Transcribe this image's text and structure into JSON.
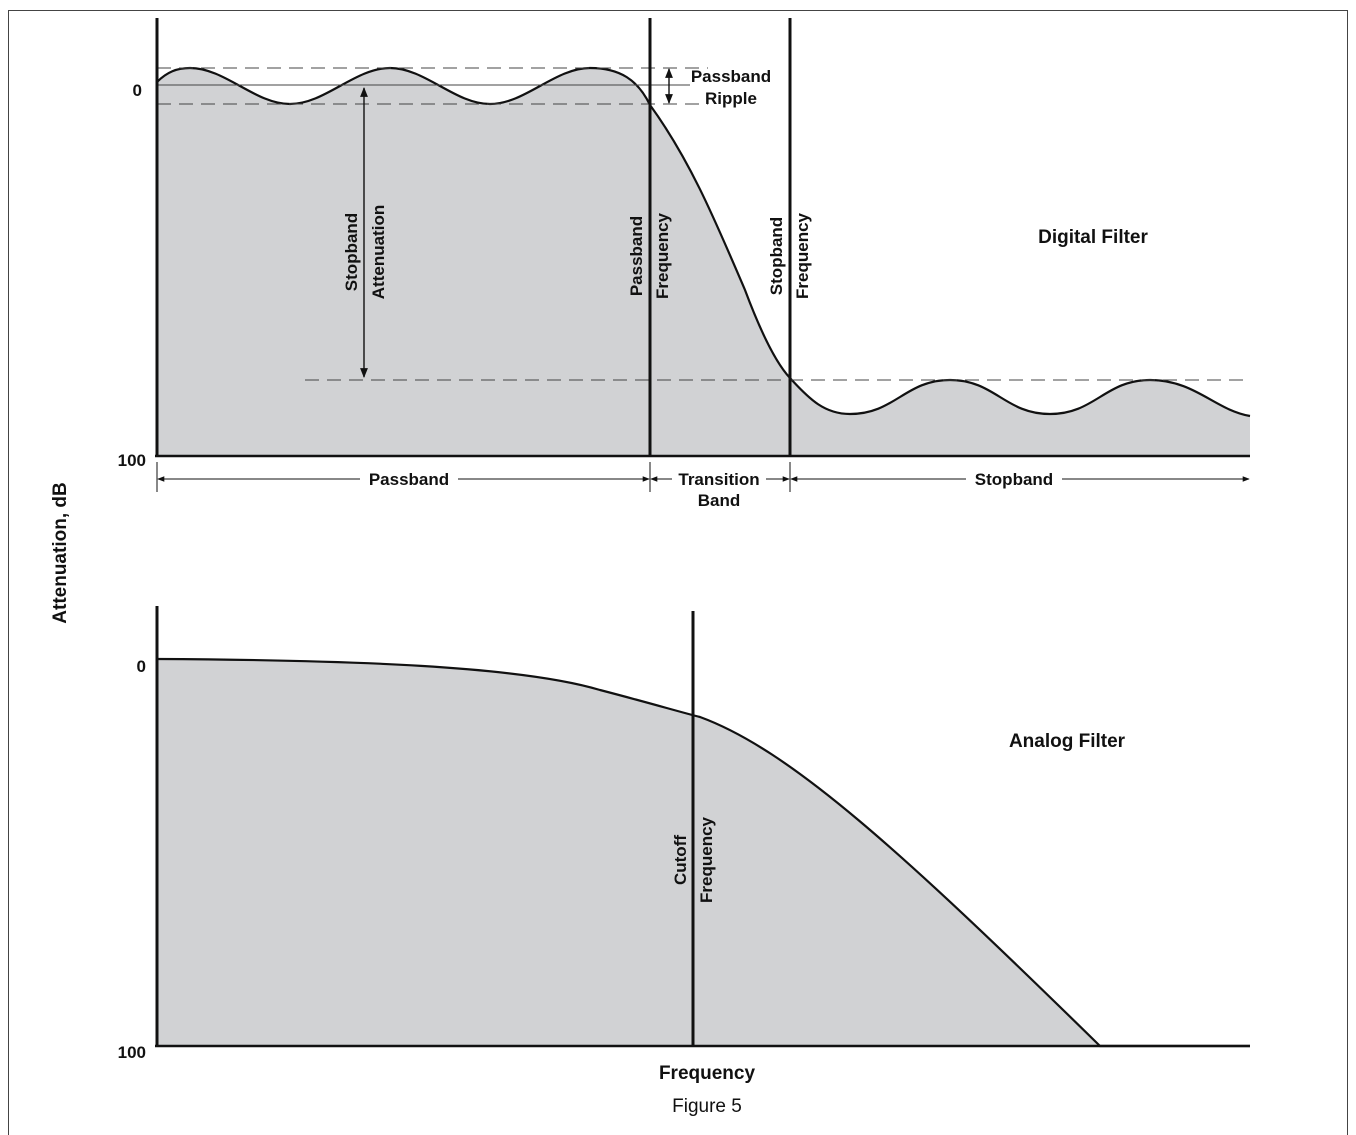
{
  "y_axis_label": "Attenuation, dB",
  "x_axis_label": "Frequency",
  "figure_caption": "Figure 5",
  "colors": {
    "fill": "#d1d2d4",
    "line": "#111111"
  },
  "digital": {
    "title": "Digital Filter",
    "tick_top": "0",
    "tick_bottom": "100",
    "ripple_label_1": "Passband",
    "ripple_label_2": "Ripple",
    "stop_att_1": "Stopband",
    "stop_att_2": "Attenuation",
    "pass_freq_1": "Passband",
    "pass_freq_2": "Frequency",
    "stop_freq_1": "Stopband",
    "stop_freq_2": "Frequency",
    "band_passband": "Passband",
    "band_transition_1": "Transition",
    "band_transition_2": "Band",
    "band_stopband": "Stopband"
  },
  "analog": {
    "title": "Analog Filter",
    "tick_top": "0",
    "tick_bottom": "100",
    "cutoff_1": "Cutoff",
    "cutoff_2": "Frequency"
  }
}
